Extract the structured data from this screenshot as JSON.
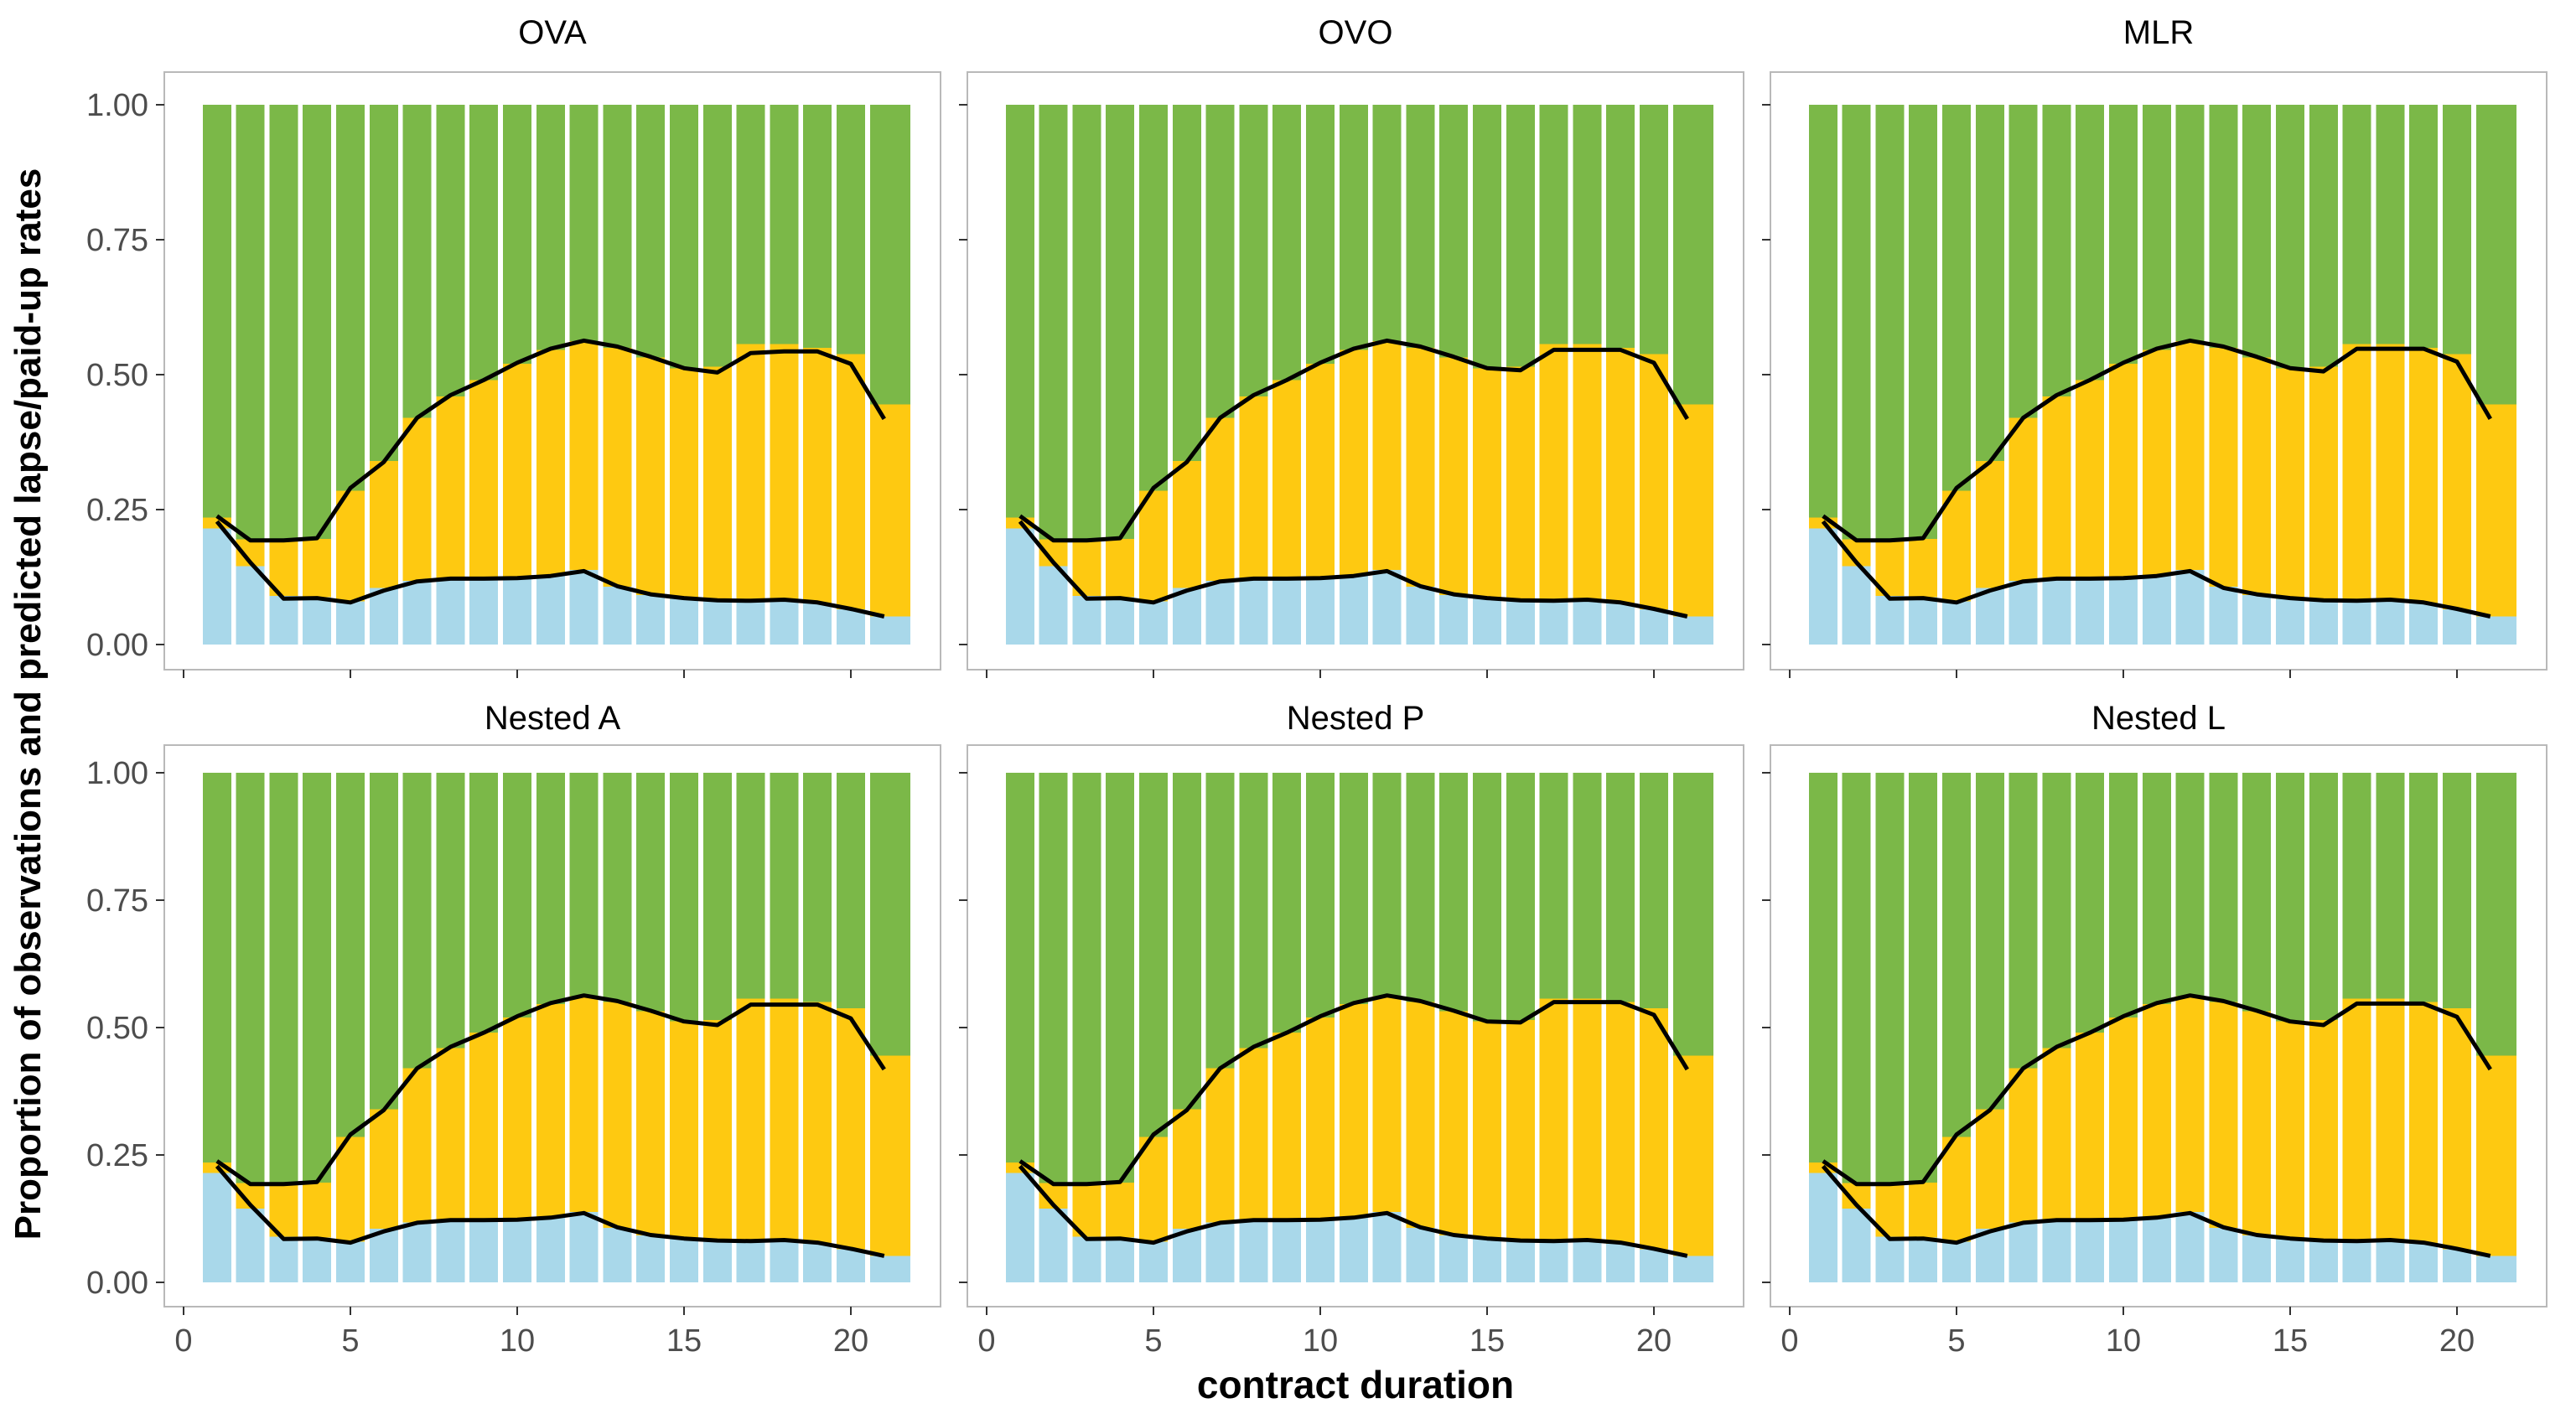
{
  "figure": {
    "y_axis_label": "Proportion of observations and predicted lapse/paid-up rates",
    "x_axis_label": "contract duration",
    "background": "#ffffff"
  },
  "colors": {
    "paid_up_fill": "#A9D8EA",
    "lapse_fill": "#FEC911",
    "remaining_fill": "#7BB848",
    "prediction_line": "#000000",
    "panel_border": "#b9b9b9",
    "tick_mark": "#333333",
    "tick_label": "#4d4d4d",
    "title_text": "#000000"
  },
  "chart_data": {
    "type": "bar",
    "stacked": true,
    "facets": true,
    "title": "",
    "xlabel": "contract duration",
    "ylabel": "Proportion of observations and predicted lapse/paid-up rates",
    "x": [
      1,
      2,
      3,
      4,
      5,
      6,
      7,
      8,
      9,
      10,
      11,
      12,
      13,
      14,
      15,
      16,
      17,
      18,
      19,
      20,
      21
    ],
    "xlim": [
      0,
      22
    ],
    "ylim": [
      0,
      1
    ],
    "x_tick_values": [
      0,
      5,
      10,
      15,
      20
    ],
    "x_tick_labels": [
      "0",
      "5",
      "10",
      "15",
      "20"
    ],
    "y_tick_values": [
      1.0,
      0.75,
      0.5,
      0.25,
      0.0
    ],
    "y_tick_labels": [
      "1.00",
      "0.75",
      "0.50",
      "0.25",
      "0.00"
    ],
    "grid": false,
    "legend_position": "none",
    "series_meaning": {
      "bars_bottom_blue": "observed paid-up proportion",
      "bars_middle_yellow": "observed lapse proportion (cumulative top = paid-up + lapse)",
      "bars_top_green": "remaining observed proportion up to 1.0",
      "lower_black_line": "predicted paid-up rate",
      "upper_black_line": "predicted cumulative lapse/paid-up rate"
    },
    "observed": {
      "paid_up_cum": [
        0.215,
        0.145,
        0.09,
        0.088,
        0.08,
        0.105,
        0.118,
        0.122,
        0.122,
        0.124,
        0.128,
        0.138,
        0.107,
        0.092,
        0.085,
        0.082,
        0.082,
        0.082,
        0.076,
        0.065,
        0.052
      ],
      "lapse_cum": [
        0.235,
        0.195,
        0.195,
        0.196,
        0.285,
        0.34,
        0.42,
        0.46,
        0.49,
        0.52,
        0.546,
        0.562,
        0.55,
        0.532,
        0.512,
        0.515,
        0.557,
        0.557,
        0.55,
        0.538,
        0.445
      ]
    },
    "panels": [
      {
        "title": "OVA",
        "pred_paid_up": [
          0.228,
          0.152,
          0.085,
          0.086,
          0.078,
          0.1,
          0.117,
          0.122,
          0.122,
          0.123,
          0.127,
          0.136,
          0.108,
          0.093,
          0.086,
          0.082,
          0.081,
          0.083,
          0.078,
          0.066,
          0.052
        ],
        "pred_lapse_cum": [
          0.238,
          0.193,
          0.193,
          0.197,
          0.29,
          0.338,
          0.42,
          0.462,
          0.49,
          0.522,
          0.548,
          0.563,
          0.552,
          0.533,
          0.512,
          0.504,
          0.54,
          0.543,
          0.543,
          0.52,
          0.418
        ]
      },
      {
        "title": "OVO",
        "pred_paid_up": [
          0.228,
          0.152,
          0.085,
          0.086,
          0.078,
          0.1,
          0.117,
          0.122,
          0.122,
          0.123,
          0.127,
          0.136,
          0.108,
          0.093,
          0.086,
          0.082,
          0.081,
          0.083,
          0.078,
          0.066,
          0.052
        ],
        "pred_lapse_cum": [
          0.238,
          0.193,
          0.193,
          0.197,
          0.29,
          0.338,
          0.42,
          0.462,
          0.49,
          0.522,
          0.548,
          0.563,
          0.552,
          0.533,
          0.512,
          0.508,
          0.546,
          0.546,
          0.546,
          0.522,
          0.418
        ]
      },
      {
        "title": "MLR",
        "pred_paid_up": [
          0.228,
          0.152,
          0.085,
          0.086,
          0.078,
          0.1,
          0.117,
          0.122,
          0.122,
          0.123,
          0.127,
          0.136,
          0.105,
          0.093,
          0.086,
          0.082,
          0.081,
          0.083,
          0.078,
          0.066,
          0.052
        ],
        "pred_lapse_cum": [
          0.238,
          0.193,
          0.193,
          0.197,
          0.29,
          0.338,
          0.42,
          0.462,
          0.49,
          0.522,
          0.548,
          0.563,
          0.552,
          0.533,
          0.512,
          0.506,
          0.548,
          0.548,
          0.548,
          0.524,
          0.418
        ]
      },
      {
        "title": "Nested A",
        "pred_paid_up": [
          0.228,
          0.152,
          0.085,
          0.086,
          0.078,
          0.1,
          0.117,
          0.122,
          0.122,
          0.123,
          0.127,
          0.136,
          0.108,
          0.093,
          0.086,
          0.082,
          0.081,
          0.083,
          0.078,
          0.066,
          0.052
        ],
        "pred_lapse_cum": [
          0.238,
          0.193,
          0.193,
          0.197,
          0.29,
          0.338,
          0.42,
          0.462,
          0.49,
          0.522,
          0.548,
          0.563,
          0.552,
          0.533,
          0.512,
          0.505,
          0.545,
          0.545,
          0.545,
          0.518,
          0.418
        ]
      },
      {
        "title": "Nested P",
        "pred_paid_up": [
          0.228,
          0.152,
          0.085,
          0.086,
          0.078,
          0.1,
          0.117,
          0.122,
          0.122,
          0.123,
          0.127,
          0.136,
          0.108,
          0.093,
          0.086,
          0.082,
          0.081,
          0.083,
          0.078,
          0.066,
          0.052
        ],
        "pred_lapse_cum": [
          0.238,
          0.193,
          0.193,
          0.197,
          0.29,
          0.338,
          0.42,
          0.462,
          0.49,
          0.522,
          0.548,
          0.563,
          0.552,
          0.533,
          0.512,
          0.51,
          0.55,
          0.55,
          0.55,
          0.525,
          0.418
        ]
      },
      {
        "title": "Nested L",
        "pred_paid_up": [
          0.228,
          0.152,
          0.085,
          0.086,
          0.078,
          0.1,
          0.117,
          0.122,
          0.122,
          0.123,
          0.127,
          0.136,
          0.108,
          0.093,
          0.086,
          0.082,
          0.081,
          0.083,
          0.078,
          0.066,
          0.052
        ],
        "pred_lapse_cum": [
          0.238,
          0.193,
          0.193,
          0.197,
          0.29,
          0.338,
          0.42,
          0.462,
          0.49,
          0.522,
          0.548,
          0.563,
          0.552,
          0.533,
          0.512,
          0.505,
          0.547,
          0.547,
          0.547,
          0.521,
          0.418
        ]
      }
    ]
  }
}
